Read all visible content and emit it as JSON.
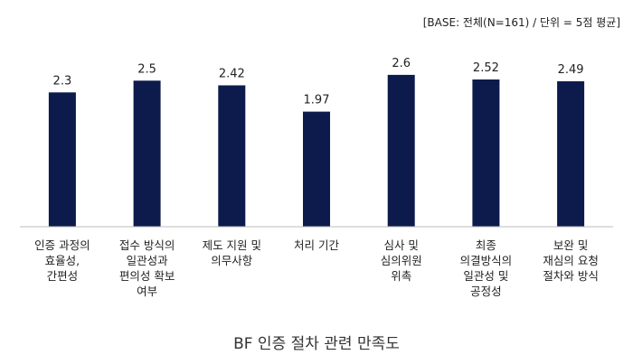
{
  "base_note": "[BASE: 전체(N=161) / 단위 = 5점 평균]",
  "chart_data": {
    "type": "bar",
    "title": "BF 인증 절차 관련 만족도",
    "categories": [
      [
        "인증 과정의",
        "효율성,",
        "간편성"
      ],
      [
        "접수 방식의",
        "일관성과",
        "편의성 확보",
        "여부"
      ],
      [
        "제도 지원 및",
        "의무사항"
      ],
      [
        "처리 기간"
      ],
      [
        "심사 및",
        "심의위원",
        "위촉"
      ],
      [
        "최종",
        "의결방식의",
        "일관성 및",
        "공정성"
      ],
      [
        "보완 및",
        "재심의 요청",
        "절차와 방식"
      ]
    ],
    "values": [
      2.3,
      2.5,
      2.42,
      1.97,
      2.6,
      2.52,
      2.49
    ],
    "value_labels": [
      "2.3",
      "2.5",
      "2.42",
      "1.97",
      "2.6",
      "2.52",
      "2.49"
    ],
    "ylim": [
      0,
      3.0
    ],
    "grid": false,
    "bar_color": "#0d1b4c",
    "axis_color": "#bdbdbd"
  }
}
